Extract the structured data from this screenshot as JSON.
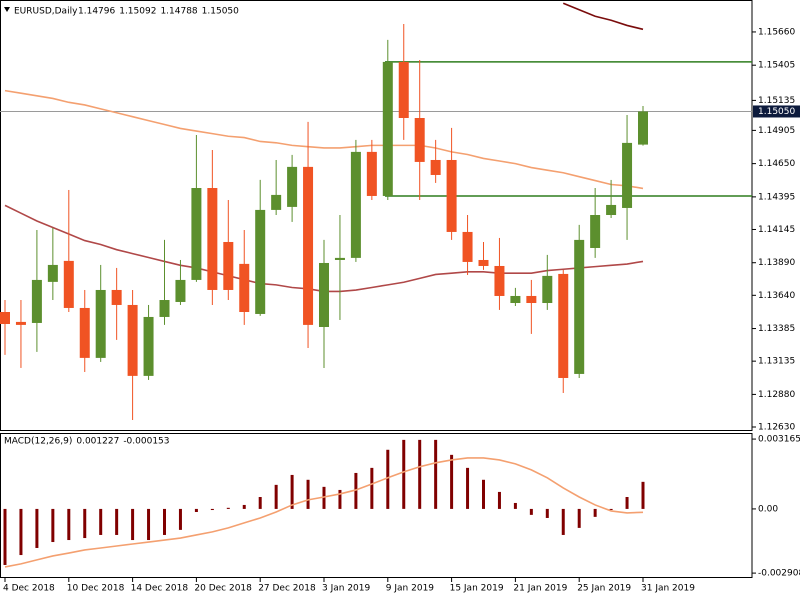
{
  "chart_data": {
    "type": "candlestick",
    "header": {
      "symbol": "EURUSD,Daily",
      "values": [
        1.14796,
        1.15092,
        1.14788,
        {
          "value": 1.1505,
          "label": "1.15050"
        }
      ]
    },
    "categories": [
      "4 Dec 2018",
      null,
      null,
      null,
      "10 Dec 2018",
      null,
      null,
      null,
      "14 Dec 2018",
      null,
      null,
      null,
      "20 Dec 2018",
      null,
      null,
      null,
      "27 Dec 2018",
      null,
      null,
      null,
      "3 Jan 2019",
      null,
      null,
      null,
      "9 Jan 2019",
      null,
      null,
      null,
      "15 Jan 2019",
      null,
      null,
      null,
      "21 Jan 2019",
      null,
      null,
      null,
      "25 Jan 2019",
      null,
      null,
      null,
      "31 Jan 2019"
    ],
    "candles": {
      "open": [
        1.13512,
        1.13436,
        1.13428,
        1.13743,
        1.13904,
        1.13543,
        1.1316,
        1.13681,
        1.13566,
        1.13022,
        1.13474,
        1.13589,
        1.13758,
        1.14463,
        1.14049,
        1.13881,
        1.13497,
        1.14295,
        1.14318,
        1.14625,
        1.13397,
        1.13911,
        1.13927,
        1.1474,
        1.14402,
        1.1543,
        1.15,
        1.14678,
        1.14678,
        1.14126,
        1.13911,
        1.13865,
        1.13581,
        1.13635,
        1.13581,
        1.13804,
        1.13037,
        1.14003,
        1.14256,
        1.1431,
        1.14796
      ],
      "high": [
        1.13604,
        1.13604,
        1.14141,
        1.14157,
        1.14448,
        1.13681,
        1.13873,
        1.1385,
        1.13681,
        1.13566,
        1.14065,
        1.13911,
        1.1487,
        1.14755,
        1.14371,
        1.14141,
        1.14525,
        1.14678,
        1.14717,
        1.1497,
        1.14065,
        1.14256,
        1.14832,
        1.14832,
        1.15599,
        1.15721,
        1.15445,
        1.14832,
        1.14924,
        1.14256,
        1.14049,
        1.1408,
        1.13697,
        1.13758,
        1.1395,
        1.13835,
        1.1418,
        1.14463,
        1.14525,
        1.15023,
        1.15092
      ],
      "low": [
        1.13183,
        1.13083,
        1.13206,
        1.13604,
        1.13512,
        1.13052,
        1.13129,
        1.13298,
        1.12684,
        1.12991,
        1.13413,
        1.13566,
        1.13743,
        1.13566,
        1.13604,
        1.13413,
        1.13482,
        1.14256,
        1.14203,
        1.13236,
        1.13083,
        1.13451,
        1.13896,
        1.14371,
        1.14371,
        1.14832,
        1.14371,
        1.14502,
        1.14065,
        1.13796,
        1.13835,
        1.13528,
        1.13558,
        1.13344,
        1.13528,
        1.12891,
        1.13006,
        1.13927,
        1.14233,
        1.14065,
        1.14788
      ],
      "close": [
        1.1342,
        1.13413,
        1.13758,
        1.13873,
        1.13543,
        1.1316,
        1.13681,
        1.13566,
        1.13022,
        1.13474,
        1.13604,
        1.13758,
        1.14463,
        1.13681,
        1.13681,
        1.13512,
        1.14295,
        1.1441,
        1.14625,
        1.13413,
        1.13888,
        1.13927,
        1.1474,
        1.14402,
        1.1543,
        1.15,
        1.14663,
        1.14563,
        1.14126,
        1.13896,
        1.13865,
        1.13635,
        1.13635,
        1.13581,
        1.13789,
        1.13006,
        1.14065,
        1.14256,
        1.14333,
        1.14809,
        1.1505
      ]
    },
    "up_color": "#5c8f2e",
    "down_color": "#f05323",
    "overlays": [
      {
        "color": "#f4a070",
        "values": [
          1.1521,
          1.1519,
          1.1517,
          1.1515,
          1.1512,
          1.151,
          1.1507,
          1.1504,
          1.1501,
          1.1498,
          1.1495,
          1.1492,
          1.149,
          1.1488,
          1.1486,
          1.1485,
          1.1482,
          1.1481,
          1.1479,
          1.1478,
          1.1477,
          1.1477,
          1.1478,
          1.1479,
          1.1479,
          1.1479,
          1.1479,
          1.1477,
          1.1474,
          1.1472,
          1.1469,
          1.1467,
          1.1465,
          1.1462,
          1.146,
          1.1458,
          1.1455,
          1.1452,
          1.1449,
          1.1448,
          1.1446
        ]
      },
      {
        "color": "#b04848",
        "values": [
          1.1433,
          1.1427,
          1.1421,
          1.1416,
          1.1411,
          1.1406,
          1.1403,
          1.1399,
          1.1396,
          1.1393,
          1.139,
          1.1387,
          1.1385,
          1.1382,
          1.1379,
          1.1376,
          1.1373,
          1.1372,
          1.137,
          1.1369,
          1.1367,
          1.1367,
          1.1368,
          1.137,
          1.1372,
          1.1374,
          1.1377,
          1.138,
          1.1381,
          1.1382,
          1.1382,
          1.1381,
          1.1381,
          1.1381,
          1.1383,
          1.1384,
          1.1385,
          1.1386,
          1.1387,
          1.1388,
          1.139
        ]
      },
      {
        "color": "#7a0c0c",
        "values": [
          null,
          null,
          null,
          null,
          null,
          null,
          null,
          null,
          null,
          null,
          null,
          null,
          null,
          null,
          null,
          null,
          null,
          null,
          null,
          null,
          null,
          null,
          null,
          null,
          null,
          null,
          null,
          null,
          null,
          null,
          null,
          null,
          null,
          null,
          null,
          1.1588,
          1.1583,
          1.1578,
          1.1575,
          1.1571,
          1.1568
        ]
      }
    ],
    "levels": [
      1.1543,
      1.14402
    ],
    "level_color": "#2e7d1e",
    "price_tag": {
      "value": 1.1505,
      "label": "1.15050"
    },
    "ylim": [
      1.12607,
      1.15905
    ],
    "yticks": [
      {
        "value": 1.1566,
        "label": "1.15660"
      },
      1.15405,
      1.15135,
      1.14905,
      {
        "value": 1.1465,
        "label": "1.14650"
      },
      1.14395,
      1.14145,
      {
        "value": 1.1389,
        "label": "1.13890"
      },
      {
        "value": 1.1364,
        "label": "1.13640"
      },
      1.13385,
      1.13135,
      {
        "value": 1.1288,
        "label": "1.12880"
      },
      {
        "value": 1.1263,
        "label": "1.12630"
      }
    ],
    "macd": {
      "title": "MACD(12,26,9)",
      "values": [
        0.001227,
        -0.000153
      ],
      "histogram_color": "#800000",
      "signal_color": "#f4a070",
      "histogram": [
        -0.00254,
        -0.00209,
        -0.00177,
        -0.0015,
        -0.00141,
        -0.00132,
        -0.00118,
        -0.00118,
        -0.00141,
        -0.00141,
        -0.00118,
        -0.00095,
        -0.00014,
        -5e-05,
        5e-05,
        0.00018,
        0.00054,
        0.00109,
        0.00154,
        0.00132,
        0.001,
        0.00086,
        0.00163,
        0.00186,
        0.00268,
        0.00313,
        0.00313,
        0.00313,
        0.00245,
        0.00186,
        0.00132,
        0.00077,
        0.00027,
        -0.00027,
        -0.00041,
        -0.00118,
        -0.00086,
        -0.00036,
        -5e-05,
        0.00054,
        0.001227
      ],
      "signal": [
        -0.00263,
        -0.00249,
        -0.00231,
        -0.00213,
        -0.002,
        -0.00186,
        -0.00177,
        -0.00168,
        -0.00159,
        -0.0015,
        -0.00141,
        -0.00132,
        -0.00118,
        -0.00104,
        -0.00086,
        -0.00063,
        -0.00041,
        -0.00014,
        0.00018,
        0.00041,
        0.00054,
        0.00068,
        0.00086,
        0.00113,
        0.00141,
        0.00168,
        0.00191,
        0.00209,
        0.00222,
        0.00231,
        0.00231,
        0.00222,
        0.00204,
        0.00177,
        0.00141,
        0.00095,
        0.00054,
        0.00018,
        -9e-05,
        -0.00018,
        -0.000153
      ],
      "ylim": [
        -0.00313,
        0.00344
      ],
      "yticks": [
        0.003165,
        {
          "value": 0,
          "label": "0.00"
        },
        -0.002908
      ]
    }
  }
}
